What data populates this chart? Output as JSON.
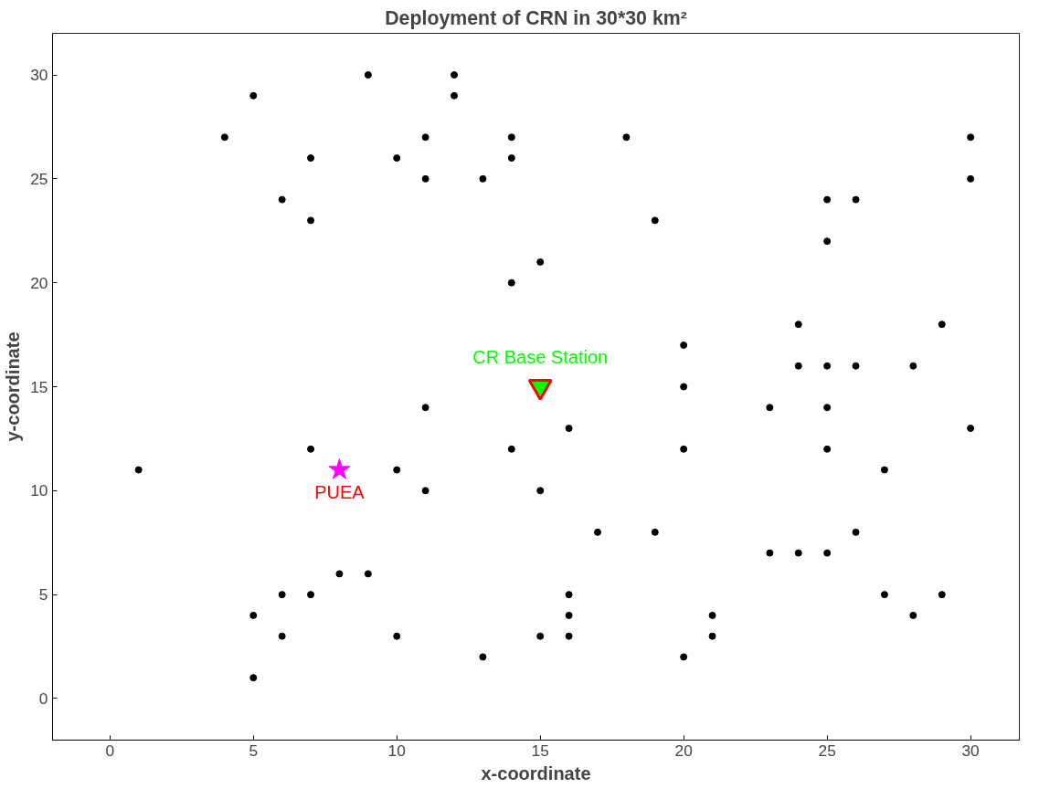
{
  "chart_data": {
    "type": "scatter",
    "title": "Deployment of CRN in 30*30 km²",
    "xlabel": "x-coordinate",
    "ylabel": "y-coordinate",
    "xlim": [
      -2,
      31.7
    ],
    "ylim": [
      -2,
      32
    ],
    "xticks": [
      0,
      5,
      10,
      15,
      20,
      25,
      30
    ],
    "yticks": [
      0,
      5,
      10,
      15,
      20,
      25,
      30
    ],
    "grid": false,
    "series": [
      {
        "color": "#000000",
        "marker": "circle",
        "x": [
          1,
          4,
          5,
          5,
          5,
          6,
          6,
          6,
          7,
          7,
          7,
          7,
          8,
          9,
          9,
          10,
          10,
          10,
          11,
          11,
          11,
          11,
          12,
          12,
          13,
          13,
          14,
          14,
          14,
          14,
          15,
          15,
          15,
          16,
          16,
          16,
          16,
          17,
          18,
          19,
          19,
          20,
          20,
          20,
          20,
          21,
          21,
          23,
          23,
          24,
          24,
          24,
          25,
          25,
          25,
          25,
          25,
          25,
          26,
          26,
          26,
          27,
          27,
          28,
          28,
          29,
          29,
          30,
          30,
          30
        ],
        "values": [
          11,
          27,
          29,
          4,
          1,
          24,
          5,
          3,
          26,
          23,
          12,
          5,
          6,
          30,
          6,
          26,
          11,
          3,
          27,
          25,
          14,
          10,
          30,
          29,
          25,
          2,
          27,
          26,
          20,
          12,
          21,
          10,
          3,
          13,
          5,
          4,
          3,
          8,
          27,
          23,
          8,
          17,
          15,
          12,
          2,
          4,
          3,
          14,
          7,
          18,
          16,
          7,
          24,
          22,
          16,
          14,
          12,
          7,
          24,
          16,
          8,
          11,
          5,
          16,
          4,
          18,
          5,
          27,
          25,
          13
        ]
      },
      {
        "color": "#ff00ff",
        "marker": "star",
        "x": [
          8
        ],
        "values": [
          11
        ]
      },
      {
        "color": "#ff0000",
        "colors": [
          "#00ff00"
        ],
        "marker": "triangle",
        "x": [
          15
        ],
        "values": [
          15
        ]
      }
    ],
    "annotations": [
      {
        "text": "PUEA",
        "x": 8,
        "y": 11
      },
      {
        "text": "CR Base Station",
        "x": 15,
        "y": 15
      }
    ]
  }
}
